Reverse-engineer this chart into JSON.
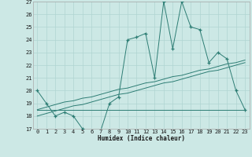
{
  "xlabel": "Humidex (Indice chaleur)",
  "x_values": [
    0,
    1,
    2,
    3,
    4,
    5,
    6,
    7,
    8,
    9,
    10,
    11,
    12,
    13,
    14,
    15,
    16,
    17,
    18,
    19,
    20,
    21,
    22,
    23
  ],
  "main_line": [
    20,
    19,
    18,
    18.3,
    18,
    17,
    16.8,
    16.8,
    19,
    19.5,
    24,
    24.2,
    24.5,
    21,
    27,
    23.3,
    27,
    25,
    24.8,
    22.2,
    23,
    22.5,
    20,
    18.5
  ],
  "regression_line1": [
    18.5,
    18.7,
    18.9,
    19.1,
    19.2,
    19.4,
    19.5,
    19.7,
    19.9,
    20.1,
    20.2,
    20.4,
    20.6,
    20.7,
    20.9,
    21.1,
    21.2,
    21.4,
    21.6,
    21.7,
    21.9,
    22.1,
    22.2,
    22.4
  ],
  "regression_line2": [
    18.0,
    18.2,
    18.4,
    18.6,
    18.8,
    18.9,
    19.1,
    19.3,
    19.5,
    19.7,
    19.8,
    20.0,
    20.2,
    20.4,
    20.6,
    20.7,
    20.9,
    21.1,
    21.3,
    21.5,
    21.6,
    21.8,
    22.0,
    22.2
  ],
  "flat_line": [
    18.5,
    18.5,
    18.5,
    18.5,
    18.5,
    18.5,
    18.5,
    18.5,
    18.5,
    18.5,
    18.5,
    18.5,
    18.5,
    18.5,
    18.5,
    18.5,
    18.5,
    18.5,
    18.5,
    18.5,
    18.5,
    18.5,
    18.5,
    18.5
  ],
  "line_color": "#2d7d74",
  "bg_color": "#cce8e5",
  "grid_color": "#b0d5d2",
  "ylim": [
    17,
    27
  ],
  "xlim": [
    -0.5,
    23.5
  ],
  "yticks": [
    17,
    18,
    19,
    20,
    21,
    22,
    23,
    24,
    25,
    26,
    27
  ],
  "xticks": [
    0,
    1,
    2,
    3,
    4,
    5,
    6,
    7,
    8,
    9,
    10,
    11,
    12,
    13,
    14,
    15,
    16,
    17,
    18,
    19,
    20,
    21,
    22,
    23
  ]
}
